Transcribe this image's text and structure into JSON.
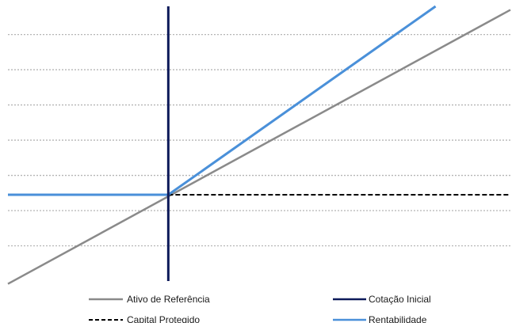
{
  "chart_data": {
    "type": "line",
    "title": "",
    "xlabel": "",
    "ylabel": "",
    "grid": true,
    "legend": "bottom",
    "xlim": [
      -3,
      6.4
    ],
    "ylim": [
      -1,
      6.8
    ],
    "gridlines_y": [
      0,
      1,
      2,
      3,
      4,
      5,
      6
    ],
    "colors": {
      "ativo": "#8a8a8a",
      "cotacao": "#0d1a5a",
      "capital": "#000000",
      "rentabilidade": "#4a90d9",
      "grid": "#b5b5b5"
    },
    "series": [
      {
        "name": "Ativo de Referência",
        "key": "ativo",
        "style": "solid",
        "points": [
          [
            -3,
            -1.08
          ],
          [
            6.4,
            6.7
          ]
        ]
      },
      {
        "name": "Cotação Inicial",
        "key": "cotacao",
        "style": "vertical",
        "x": 0
      },
      {
        "name": "Capital Protegido",
        "key": "capital",
        "style": "dashed",
        "points": [
          [
            0,
            1.45
          ],
          [
            6.4,
            1.45
          ]
        ]
      },
      {
        "name": "Rentabilidade",
        "key": "rentabilidade",
        "style": "solid",
        "points": [
          [
            -3,
            1.45
          ],
          [
            0,
            1.45
          ],
          [
            5,
            6.8
          ]
        ]
      }
    ]
  }
}
